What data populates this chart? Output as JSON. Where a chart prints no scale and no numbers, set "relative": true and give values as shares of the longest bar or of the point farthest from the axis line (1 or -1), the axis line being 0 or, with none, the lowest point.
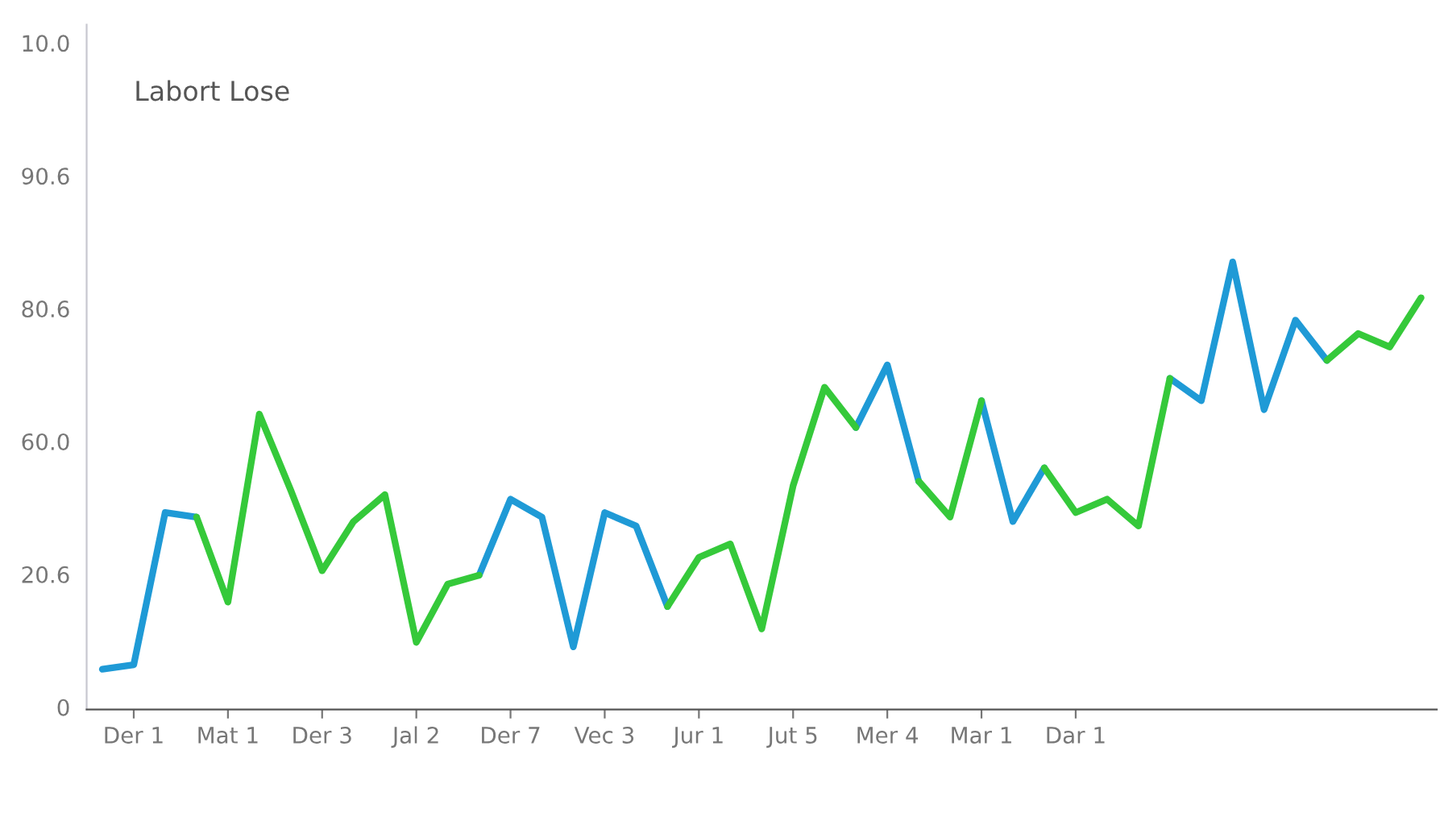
{
  "chart_data": {
    "type": "line",
    "title": "Labort Lose",
    "relative": true,
    "categories": [
      null,
      "Der 1",
      null,
      null,
      "Mat 1",
      null,
      null,
      "Der 3",
      null,
      null,
      "Jal 2",
      null,
      null,
      "Der 7",
      null,
      null,
      "Vec 3",
      null,
      null,
      "Jur 1",
      null,
      null,
      "Jut 5",
      null,
      null,
      "Mer 4",
      null,
      null,
      "Mar 1",
      null,
      null,
      "Dar 1",
      null,
      null,
      null,
      null,
      null,
      null,
      null,
      null,
      null,
      null,
      null
    ],
    "series": [
      {
        "color": "#1f9ad6",
        "values": [
          0.09,
          0.1,
          0.44,
          0.43,
          null,
          null,
          null,
          null,
          null,
          null,
          null,
          null,
          0.3,
          0.47,
          0.43,
          0.14,
          0.44,
          0.41,
          0.23,
          null,
          null,
          null,
          null,
          null,
          0.63,
          0.77,
          0.51,
          null,
          0.69,
          0.42,
          0.54,
          null,
          null,
          null,
          0.74,
          0.69,
          1,
          0.67,
          0.87,
          0.78,
          null,
          null,
          null
        ]
      },
      {
        "color": "#35c93a",
        "values": [
          null,
          null,
          null,
          0.43,
          0.24,
          0.66,
          0.49,
          0.31,
          0.42,
          0.48,
          0.15,
          0.28,
          0.3,
          null,
          null,
          null,
          null,
          null,
          0.23,
          0.34,
          0.37,
          0.18,
          0.5,
          0.72,
          0.63,
          null,
          0.51,
          0.43,
          0.69,
          null,
          0.54,
          0.44,
          0.47,
          0.41,
          0.74,
          null,
          null,
          null,
          null,
          0.78,
          0.84,
          0.81,
          0.92
        ]
      }
    ],
    "annotations": [
      "0",
      "20.6",
      "60.0",
      "80.6",
      "90.6",
      "10.0"
    ],
    "marker": "none",
    "line_style": "solid"
  }
}
